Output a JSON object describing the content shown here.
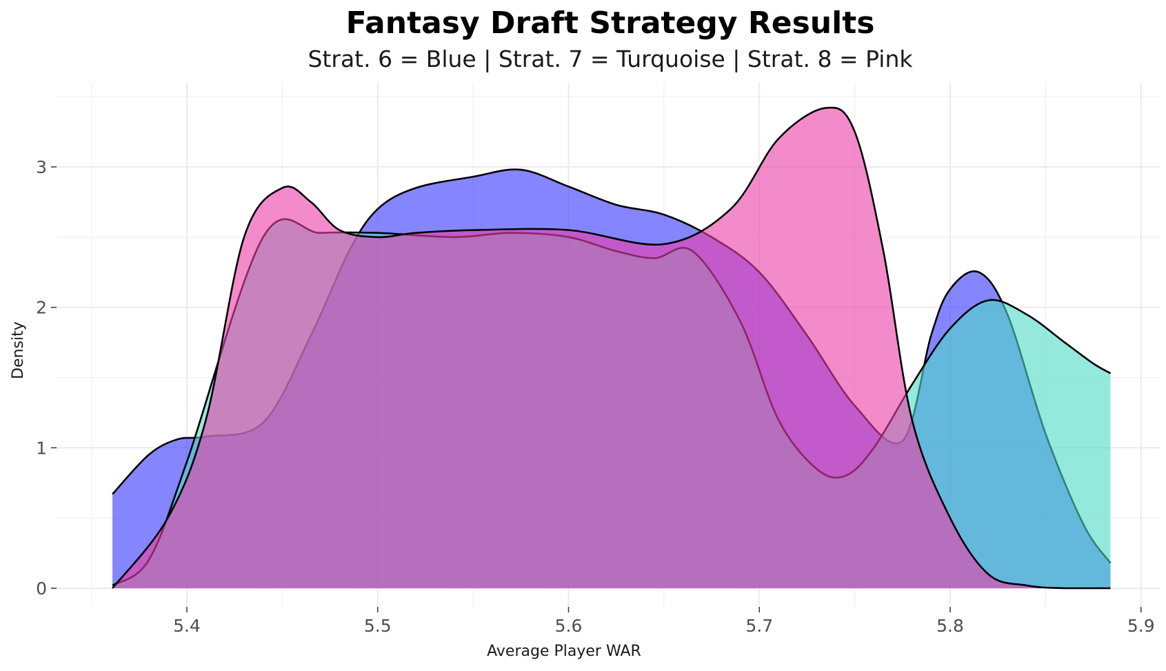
{
  "colors": {
    "blue": "#3333ff",
    "turquoise": "#4fdbc4",
    "pink": "#eb3da8",
    "outline": "#000000",
    "gridline": "#ebebeb",
    "background": "#ffffff"
  },
  "chart_data": {
    "type": "area",
    "subtype": "density",
    "title": "Fantasy Draft Strategy Results",
    "subtitle": "Strat. 6 = Blue | Strat. 7 = Turquoise | Strat. 8 = Pink",
    "xlabel": "Average Player WAR",
    "ylabel": "Density",
    "xlim": [
      5.35,
      5.9
    ],
    "ylim": [
      0,
      3.5
    ],
    "x_ticks": [
      5.4,
      5.5,
      5.6,
      5.7,
      5.8,
      5.9
    ],
    "x_tick_labels": [
      "5.4",
      "5.5",
      "5.6",
      "5.7",
      "5.8",
      "5.9"
    ],
    "y_ticks": [
      0,
      1,
      2,
      3
    ],
    "y_tick_labels": [
      "0",
      "1",
      "2",
      "3"
    ],
    "grid": true,
    "legend": "none",
    "series": [
      {
        "color": "blue",
        "x": [
          5.361,
          5.38,
          5.395,
          5.41,
          5.44,
          5.465,
          5.485,
          5.5,
          5.52,
          5.55,
          5.575,
          5.6,
          5.625,
          5.65,
          5.675,
          5.7,
          5.725,
          5.75,
          5.775,
          5.79,
          5.8,
          5.815,
          5.83,
          5.85,
          5.87,
          5.884
        ],
        "y": [
          0.67,
          0.95,
          1.06,
          1.08,
          1.18,
          1.8,
          2.4,
          2.7,
          2.85,
          2.93,
          2.98,
          2.86,
          2.73,
          2.66,
          2.5,
          2.25,
          1.8,
          1.3,
          1.05,
          1.8,
          2.13,
          2.25,
          1.95,
          1.1,
          0.45,
          0.18
        ]
      },
      {
        "color": "turquoise",
        "x": [
          5.361,
          5.38,
          5.4,
          5.44,
          5.47,
          5.5,
          5.54,
          5.57,
          5.6,
          5.625,
          5.645,
          5.665,
          5.69,
          5.71,
          5.73,
          5.745,
          5.76,
          5.78,
          5.8,
          5.82,
          5.84,
          5.86,
          5.875,
          5.884
        ],
        "y": [
          0.02,
          0.2,
          0.9,
          2.5,
          2.53,
          2.53,
          2.5,
          2.53,
          2.5,
          2.4,
          2.35,
          2.4,
          1.9,
          1.2,
          0.85,
          0.8,
          1.0,
          1.45,
          1.85,
          2.05,
          1.95,
          1.75,
          1.6,
          1.53
        ]
      },
      {
        "color": "pink",
        "x": [
          5.361,
          5.39,
          5.41,
          5.43,
          5.45,
          5.465,
          5.48,
          5.5,
          5.52,
          5.55,
          5.6,
          5.65,
          5.685,
          5.71,
          5.735,
          5.75,
          5.765,
          5.78,
          5.8,
          5.82,
          5.84,
          5.86,
          5.884
        ],
        "y": [
          0.0,
          0.5,
          1.2,
          2.5,
          2.85,
          2.75,
          2.55,
          2.5,
          2.53,
          2.55,
          2.55,
          2.45,
          2.7,
          3.2,
          3.42,
          3.25,
          2.4,
          1.2,
          0.5,
          0.1,
          0.02,
          0.0,
          0.0
        ]
      }
    ]
  }
}
